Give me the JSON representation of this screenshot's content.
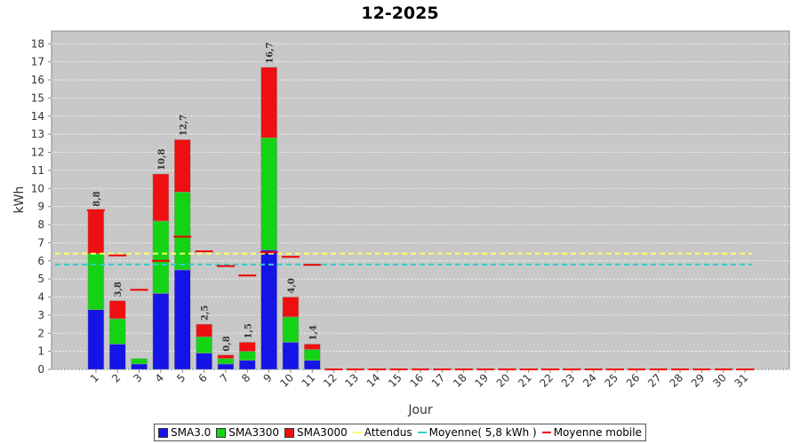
{
  "chart_data": {
    "type": "bar",
    "stacked": true,
    "title": "12-2025",
    "x_label": "Jour",
    "y_label": "kWh",
    "categories": [
      "1",
      "2",
      "3",
      "4",
      "5",
      "6",
      "7",
      "8",
      "9",
      "10",
      "11",
      "12",
      "13",
      "14",
      "15",
      "16",
      "17",
      "18",
      "19",
      "20",
      "21",
      "22",
      "23",
      "24",
      "25",
      "26",
      "27",
      "28",
      "29",
      "30",
      "31"
    ],
    "series": [
      {
        "name": "SMA3.0",
        "color": "#1414e6",
        "values": [
          3.3,
          1.4,
          0.3,
          4.2,
          5.5,
          0.9,
          0.3,
          0.5,
          6.6,
          1.5,
          0.5,
          0,
          0,
          0,
          0,
          0,
          0,
          0,
          0,
          0,
          0,
          0,
          0,
          0,
          0,
          0,
          0,
          0,
          0,
          0,
          0
        ]
      },
      {
        "name": "SMA3300",
        "color": "#14d214",
        "values": [
          3.1,
          1.4,
          0.3,
          4.0,
          4.3,
          0.9,
          0.3,
          0.5,
          6.2,
          1.4,
          0.6,
          0,
          0,
          0,
          0,
          0,
          0,
          0,
          0,
          0,
          0,
          0,
          0,
          0,
          0,
          0,
          0,
          0,
          0,
          0,
          0
        ]
      },
      {
        "name": "SMA3000",
        "color": "#ee1010",
        "values": [
          2.4,
          1.0,
          0,
          2.6,
          2.9,
          0.7,
          0.2,
          0.5,
          3.9,
          1.1,
          0.3,
          0,
          0,
          0,
          0,
          0,
          0,
          0,
          0,
          0,
          0,
          0,
          0,
          0,
          0,
          0,
          0,
          0,
          0,
          0,
          0
        ]
      }
    ],
    "total_labels": [
      "8,8",
      "3,8",
      null,
      "10,8",
      "12,7",
      "2,5",
      "0,8",
      "1,5",
      "16,7",
      "4,0",
      "1,4",
      null,
      null,
      null,
      null,
      null,
      null,
      null,
      null,
      null,
      null,
      null,
      null,
      null,
      null,
      null,
      null,
      null,
      null,
      null,
      null
    ],
    "lines": [
      {
        "name": "Attendus",
        "color": "#ffff66",
        "value": 6.4,
        "style": "dashed"
      },
      {
        "name": "Moyenne( 5,8 kWh )",
        "color": "#33cccc",
        "value": 5.8,
        "style": "dashed"
      },
      {
        "name": "Moyenne mobile",
        "color": "#ee0000",
        "style": "segments",
        "values": [
          8.8,
          6.3,
          4.4,
          6.0,
          7.34,
          6.53,
          5.71,
          5.19,
          6.47,
          6.22,
          5.78,
          0,
          0,
          0,
          0,
          0,
          0,
          0,
          0,
          0,
          0,
          0,
          0,
          0,
          0,
          0,
          0,
          0,
          0,
          0,
          0
        ]
      }
    ],
    "ylim": [
      0,
      18.7
    ],
    "yticks": [
      0,
      1,
      2,
      3,
      4,
      5,
      6,
      7,
      8,
      9,
      10,
      11,
      12,
      13,
      14,
      15,
      16,
      17,
      18
    ],
    "grid": true
  }
}
